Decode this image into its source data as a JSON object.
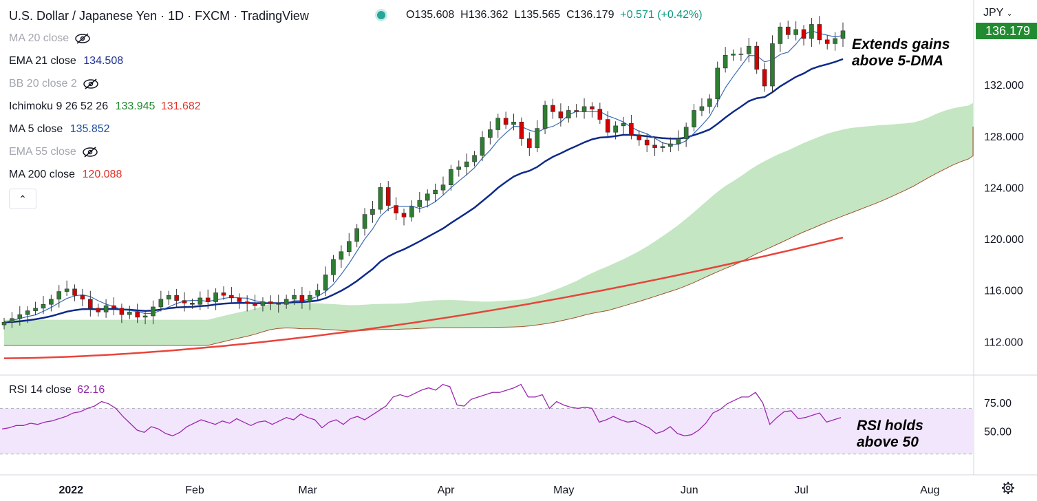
{
  "header": {
    "title": "U.S. Dollar / Japanese Yen · 1D · FXCM · TradingView",
    "open": "O135.608",
    "high": "H136.362",
    "low": "L135.565",
    "close": "C136.179",
    "change": "+0.571 (+0.42%)"
  },
  "indicators": [
    {
      "label": "MA 20 close",
      "value": "",
      "hidden": true
    },
    {
      "label": "EMA 21 close",
      "value": "134.508",
      "color": "#0d2a8a"
    },
    {
      "label": "BB 20 close 2",
      "value": "",
      "hidden": true
    },
    {
      "label": "Ichimoku 9 26 52 26",
      "value": "133.945",
      "value2": "131.682",
      "color": "#228a30",
      "color2": "#e0342a"
    },
    {
      "label": "MA 5 close",
      "value": "135.852",
      "color": "#1f4e9a"
    },
    {
      "label": "EMA 55 close",
      "value": "",
      "hidden": true
    },
    {
      "label": "MA 200 close",
      "value": "120.088",
      "color": "#e0342a"
    }
  ],
  "rsi": {
    "label": "RSI 14 close",
    "value": "62.16"
  },
  "currency": "JPY",
  "last_price": "136.179",
  "annotations": {
    "main_1": "Extends gains",
    "main_2": "above 5-DMA",
    "rsi_1": "RSI holds",
    "rsi_2": "above 50"
  },
  "colors": {
    "up": "#2e7d32",
    "down": "#d50000",
    "ema21": "#0d2a8a",
    "ma5": "#3c6bb5",
    "ma200": "#e8443a",
    "cloud": "#c4e6c3",
    "rsi": "#9c27b0",
    "rsi_band": "#f2e6fc"
  },
  "chart_data": [
    {
      "type": "candlestick",
      "title": "U.S. Dollar / Japanese Yen · 1D · FXCM",
      "ylim": [
        109.5,
        138.6
      ],
      "y_ticks": [
        "112.000",
        "116.000",
        "120.000",
        "124.000",
        "128.000",
        "132.000"
      ],
      "x_ticks": [
        "2022",
        "Feb",
        "Mar",
        "Apr",
        "May",
        "Jun",
        "Jul",
        "Aug"
      ],
      "closes_approx": [
        113.5,
        113.8,
        114.1,
        114.4,
        114.6,
        114.9,
        115.3,
        115.9,
        116.1,
        115.6,
        115.3,
        114.6,
        114.3,
        114.8,
        114.6,
        114.1,
        114.3,
        113.9,
        114.0,
        114.7,
        115.3,
        115.6,
        115.2,
        115.0,
        114.9,
        115.4,
        115.1,
        115.8,
        115.6,
        115.4,
        115.1,
        115.0,
        114.8,
        115.1,
        115.0,
        114.9,
        115.3,
        115.6,
        115.1,
        115.6,
        116.0,
        117.2,
        118.4,
        119.0,
        119.8,
        120.8,
        121.9,
        122.3,
        124.0,
        122.6,
        122.0,
        121.7,
        122.5,
        123.0,
        123.5,
        123.8,
        124.2,
        125.4,
        125.6,
        126.0,
        126.5,
        127.9,
        128.5,
        129.4,
        128.9,
        129.1,
        127.8,
        127.1,
        128.6,
        130.4,
        129.9,
        129.4,
        130.0,
        129.9,
        130.3,
        130.1,
        129.3,
        128.3,
        128.8,
        129.0,
        128.1,
        127.7,
        127.3,
        127.1,
        127.2,
        127.4,
        127.8,
        128.7,
        130.0,
        130.3,
        130.9,
        133.3,
        134.3,
        134.4,
        134.4,
        135.0,
        133.2,
        131.9,
        135.2,
        136.5,
        135.9,
        136.3,
        135.6,
        136.7,
        135.5,
        135.2,
        135.6,
        136.2
      ]
    },
    {
      "type": "line",
      "title": "RSI 14 close",
      "y_ticks": [
        "50.00",
        "75.00"
      ],
      "band": [
        30,
        70
      ],
      "values_approx": [
        52,
        53,
        55,
        55,
        57,
        56,
        58,
        59,
        61,
        63,
        66,
        67,
        70,
        72,
        76,
        74,
        70,
        63,
        57,
        51,
        49,
        54,
        52,
        48,
        46,
        49,
        54,
        57,
        60,
        58,
        56,
        59,
        57,
        61,
        58,
        55,
        58,
        59,
        56,
        59,
        62,
        60,
        65,
        62,
        60,
        53,
        58,
        60,
        56,
        61,
        63,
        60,
        64,
        68,
        72,
        80,
        82,
        80,
        83,
        86,
        88,
        86,
        91,
        89,
        73,
        72,
        78,
        80,
        82,
        84,
        84,
        86,
        88,
        91,
        80,
        80,
        82,
        70,
        76,
        73,
        71,
        70,
        71,
        70,
        58,
        60,
        63,
        60,
        58,
        59,
        56,
        53,
        48,
        50,
        54,
        48,
        46,
        47,
        51,
        57,
        66,
        69,
        74,
        77,
        80,
        80,
        84,
        75,
        56,
        62,
        67,
        68,
        61,
        62,
        64,
        66,
        58,
        60,
        62
      ]
    }
  ]
}
